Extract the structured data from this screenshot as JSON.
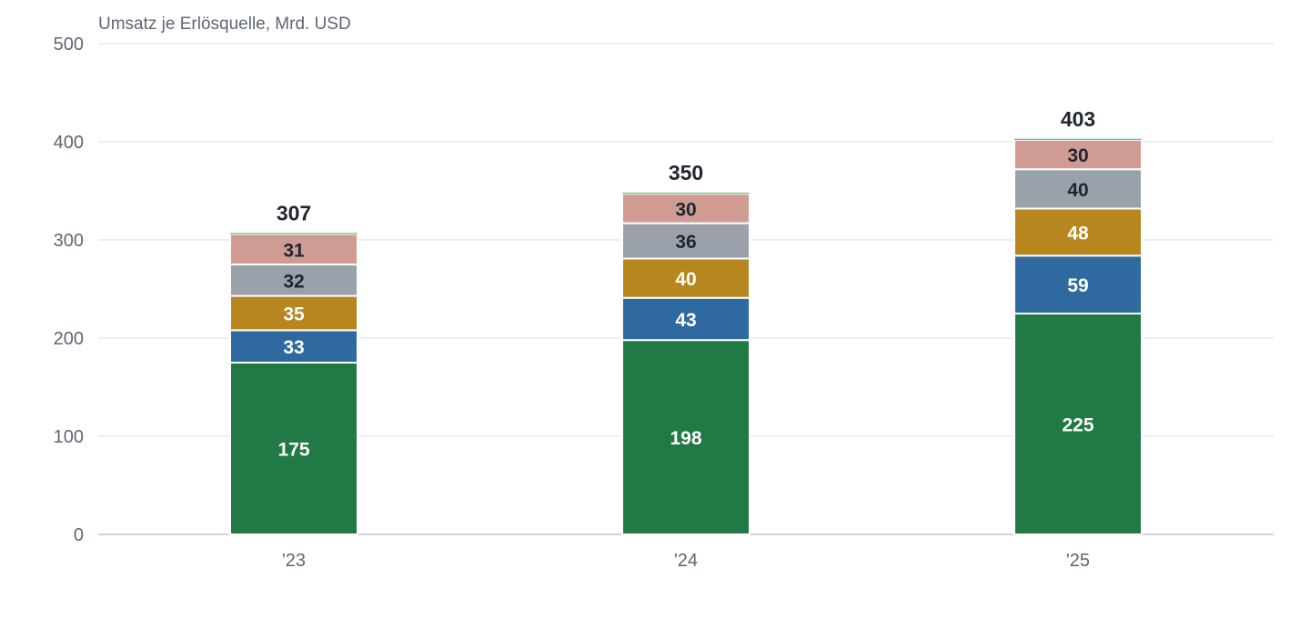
{
  "chart_data": {
    "type": "bar",
    "stacked": true,
    "title": "Umsatz je Erlösquelle, Mrd. USD",
    "categories": [
      "'23",
      "'24",
      "'25"
    ],
    "ylim": [
      0,
      500
    ],
    "yticks": [
      0,
      100,
      200,
      300,
      400,
      500
    ],
    "grid": true,
    "series": [
      {
        "color": "#217a46",
        "label_color": "#ffffff",
        "values": [
          175,
          198,
          225
        ]
      },
      {
        "color": "#2e6aa0",
        "label_color": "#ffffff",
        "values": [
          33,
          43,
          59
        ]
      },
      {
        "color": "#b7861f",
        "label_color": "#ffffff",
        "values": [
          35,
          40,
          48
        ]
      },
      {
        "color": "#9aa1ab",
        "label_color": "#1f2630",
        "values": [
          32,
          36,
          40
        ]
      },
      {
        "color": "#d09b93",
        "label_color": "#1f2630",
        "values": [
          31,
          30,
          30
        ]
      },
      {
        "color": "#5fae6e",
        "label_color": "#1f2630",
        "values": [
          1,
          1,
          1
        ]
      }
    ],
    "totals": [
      307,
      350,
      403
    ]
  }
}
